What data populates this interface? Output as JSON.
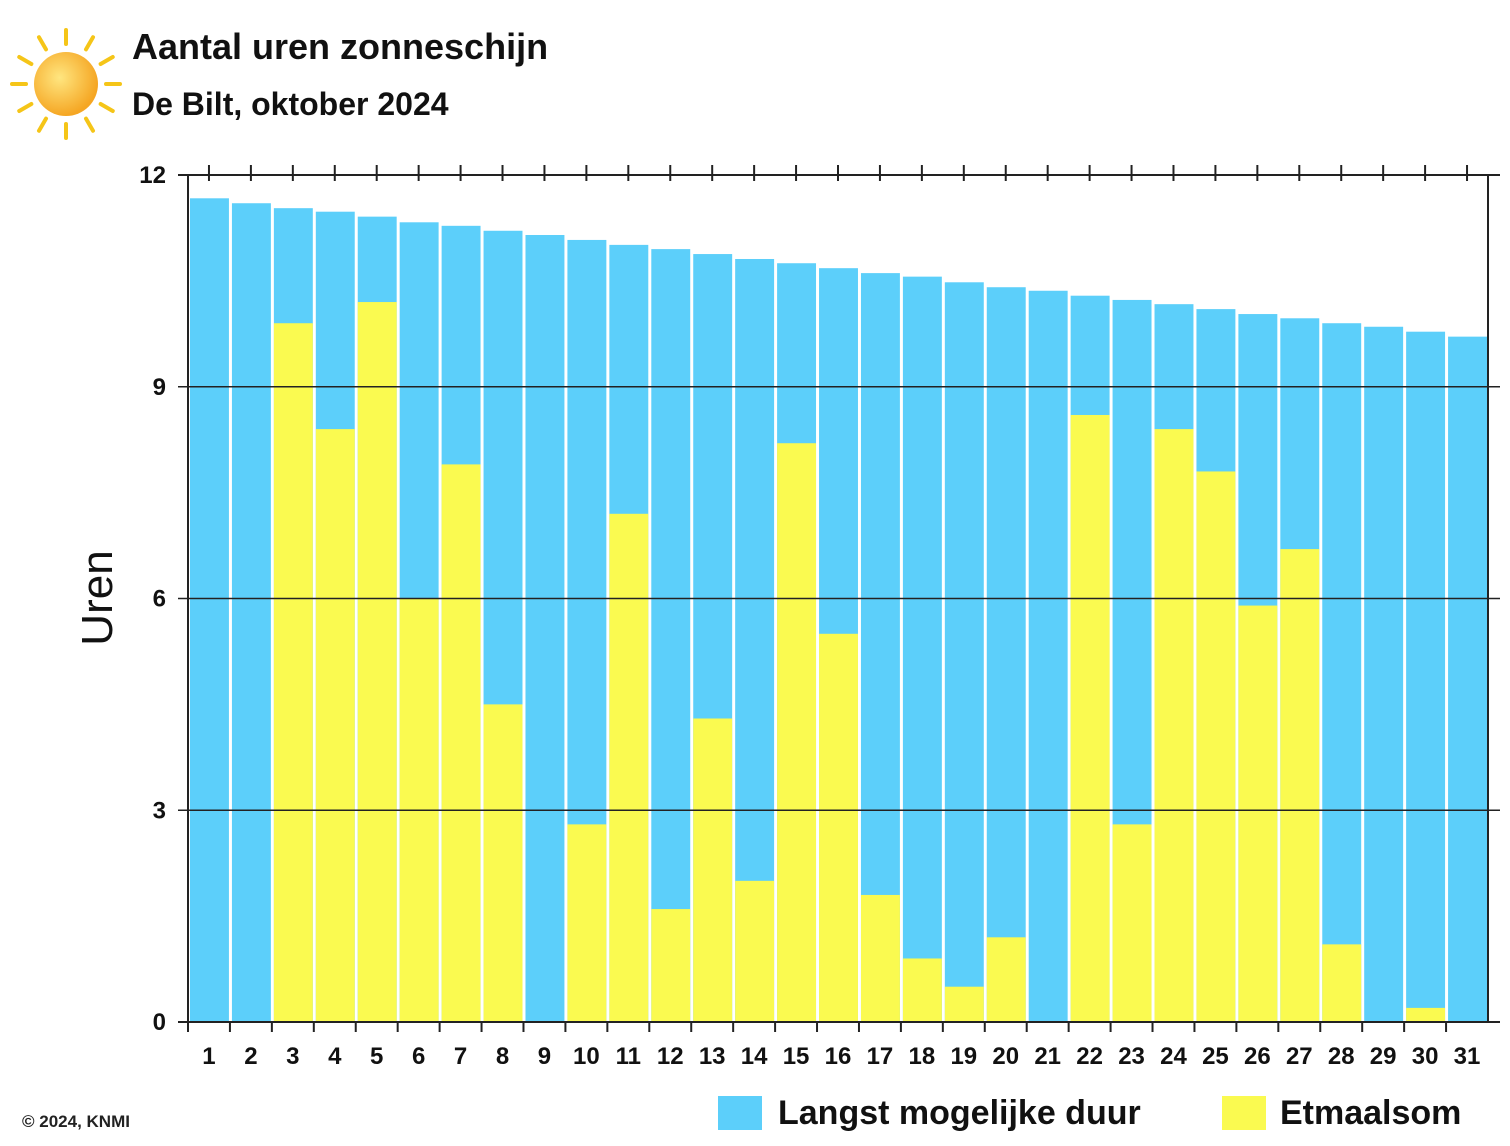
{
  "header": {
    "title": "Aantal uren zonneschijn",
    "subtitle": "De Bilt, oktober 2024",
    "icon": "sun-icon"
  },
  "footer": {
    "credit": "© 2024, KNMI"
  },
  "chart_data": {
    "type": "bar",
    "title": "Aantal uren zonneschijn",
    "subtitle": "De Bilt, oktober 2024",
    "xlabel": "",
    "ylabel": "Uren",
    "ylim": [
      0,
      12
    ],
    "yticks": [
      0,
      3,
      6,
      9,
      12
    ],
    "grid": true,
    "legend_placement": "bottom-right",
    "categories": [
      "1",
      "2",
      "3",
      "4",
      "5",
      "6",
      "7",
      "8",
      "9",
      "10",
      "11",
      "12",
      "13",
      "14",
      "15",
      "16",
      "17",
      "18",
      "19",
      "20",
      "21",
      "22",
      "23",
      "24",
      "25",
      "26",
      "27",
      "28",
      "29",
      "30",
      "31"
    ],
    "series": [
      {
        "name": "Langst mogelijke duur",
        "color": "#5ccffa",
        "values": [
          11.67,
          11.6,
          11.53,
          11.48,
          11.41,
          11.33,
          11.28,
          11.21,
          11.15,
          11.08,
          11.01,
          10.95,
          10.88,
          10.81,
          10.75,
          10.68,
          10.61,
          10.56,
          10.48,
          10.41,
          10.36,
          10.29,
          10.23,
          10.17,
          10.1,
          10.03,
          9.97,
          9.9,
          9.85,
          9.78,
          9.71
        ]
      },
      {
        "name": "Etmaalsom",
        "color": "#fafa50",
        "values": [
          0,
          0,
          9.9,
          8.4,
          10.2,
          6.0,
          7.9,
          4.5,
          0,
          2.8,
          7.2,
          1.6,
          4.3,
          2.0,
          8.2,
          5.5,
          1.8,
          0.9,
          0.5,
          1.2,
          0,
          8.6,
          2.8,
          8.4,
          7.8,
          5.9,
          6.7,
          1.1,
          0,
          0.2,
          0
        ]
      }
    ]
  }
}
